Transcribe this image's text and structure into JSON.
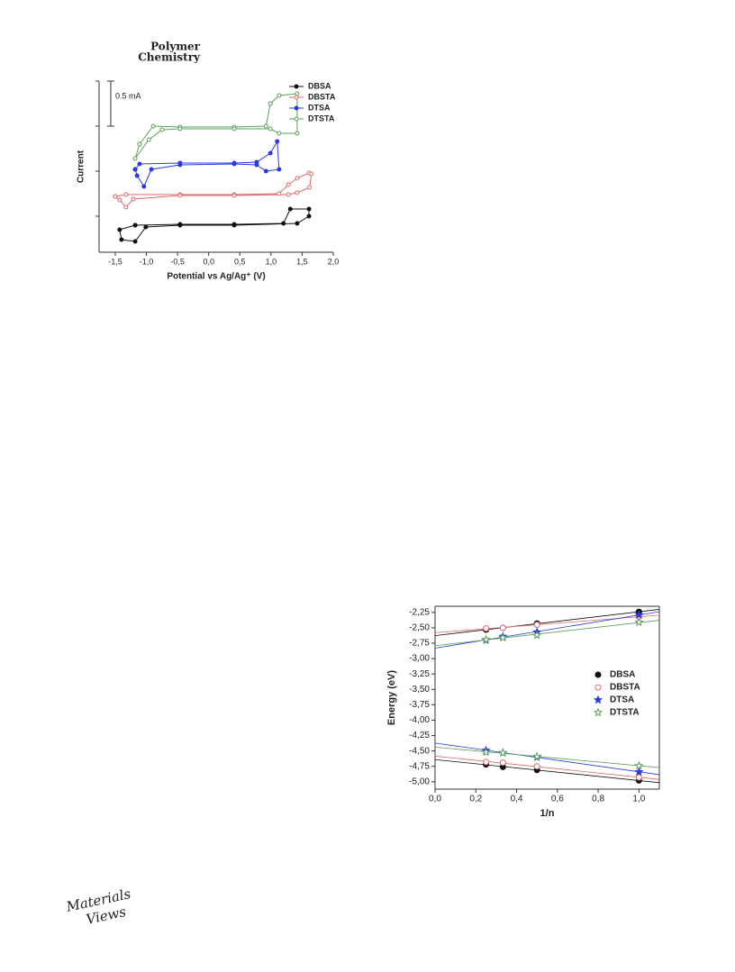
{
  "header": {
    "journal": [
      "Polymer",
      "Chemistry"
    ]
  },
  "footer": {
    "logo": [
      "Materials",
      "Views"
    ]
  },
  "chart_data": [
    {
      "type": "line",
      "xlabel": "Potential vs Ag/Ag⁺ (V)",
      "ylabel": "Current",
      "xlim": [
        -1.76,
        2.0
      ],
      "ylim": [
        -0.4,
        1.5
      ],
      "xticks": [
        {
          "value": -1.5,
          "label": "-1,5"
        },
        {
          "value": -1.0,
          "label": "-1,0"
        },
        {
          "value": -0.5,
          "label": "-0,5"
        },
        {
          "value": 0.0,
          "label": "0,0"
        },
        {
          "value": 0.5,
          "label": "0,5"
        },
        {
          "value": 1.0,
          "label": "1,0"
        },
        {
          "value": 1.5,
          "label": "1,5"
        },
        {
          "value": 2.0,
          "label": "2,0"
        }
      ],
      "yticks": [
        0,
        0.5,
        1,
        1.5
      ],
      "ytick_labels": false,
      "scale_bar": {
        "value": 0.5,
        "label": "0.5 mA"
      },
      "legend": "top-right",
      "series": [
        {
          "name": "DBSA",
          "color": "#111111",
          "marker": "circle-filled",
          "x": [
            -1.18,
            -0.46,
            0.41,
            1.2,
            1.31,
            1.61,
            1.61,
            1.42,
            0.41,
            -0.46,
            -1.01,
            -1.18,
            -1.4,
            -1.43,
            -1.18
          ],
          "values": [
            -0.1,
            -0.09,
            -0.09,
            -0.08,
            0.08,
            0.08,
            0.0,
            -0.08,
            -0.1,
            -0.1,
            -0.12,
            -0.28,
            -0.26,
            -0.15,
            -0.1
          ]
        },
        {
          "name": "DBSTA",
          "color": "#e06a6a",
          "marker": "circle-open",
          "x": [
            -1.5,
            -1.33,
            -0.46,
            0.41,
            1.13,
            1.28,
            1.42,
            1.61,
            1.65,
            1.62,
            1.42,
            1.28,
            0.41,
            -0.46,
            -1.21,
            -1.33,
            -1.43,
            -1.5
          ],
          "values": [
            0.22,
            0.24,
            0.24,
            0.24,
            0.25,
            0.35,
            0.42,
            0.48,
            0.47,
            0.32,
            0.26,
            0.24,
            0.23,
            0.23,
            0.19,
            0.1,
            0.18,
            0.22
          ]
        },
        {
          "name": "DTSA",
          "color": "#2a3adf",
          "marker": "circle-filled",
          "x": [
            -1.18,
            -1.11,
            -0.46,
            0.41,
            0.77,
            0.99,
            1.1,
            1.13,
            0.92,
            0.77,
            0.41,
            -0.46,
            -0.92,
            -1.04,
            -1.15,
            -1.18
          ],
          "values": [
            0.52,
            0.58,
            0.59,
            0.59,
            0.6,
            0.7,
            0.83,
            0.52,
            0.5,
            0.57,
            0.58,
            0.57,
            0.52,
            0.33,
            0.45,
            0.52
          ]
        },
        {
          "name": "DTSTA",
          "color": "#5aa05a",
          "marker": "circle-open",
          "x": [
            -1.11,
            -0.89,
            -0.46,
            0.41,
            0.92,
            0.99,
            1.13,
            1.42,
            1.42,
            1.13,
            0.99,
            0.41,
            -0.46,
            -0.75,
            -0.96,
            -1.18,
            -1.11
          ],
          "values": [
            0.8,
            1.0,
            0.99,
            0.99,
            1.0,
            1.25,
            1.34,
            1.36,
            0.92,
            0.92,
            0.97,
            0.97,
            0.97,
            0.96,
            0.85,
            0.64,
            0.8
          ]
        }
      ]
    },
    {
      "type": "scatter",
      "xlabel": "1/n",
      "ylabel": "Energy (eV)",
      "xlim": [
        0,
        1.1
      ],
      "ylim": [
        -5.12,
        -2.15
      ],
      "xticks": [
        {
          "value": 0.0,
          "label": "0,0"
        },
        {
          "value": 0.2,
          "label": "0,2"
        },
        {
          "value": 0.4,
          "label": "0,4"
        },
        {
          "value": 0.6,
          "label": "0,6"
        },
        {
          "value": 0.8,
          "label": "0,8"
        },
        {
          "value": 1.0,
          "label": "1,0"
        }
      ],
      "yticks": [
        {
          "value": -2.25,
          "label": "-2,25"
        },
        {
          "value": -2.5,
          "label": "-2,50"
        },
        {
          "value": -2.75,
          "label": "-2,75"
        },
        {
          "value": -3.0,
          "label": "-3,00"
        },
        {
          "value": -3.25,
          "label": "-3,25"
        },
        {
          "value": -3.5,
          "label": "-3,50"
        },
        {
          "value": -3.75,
          "label": "-3,75"
        },
        {
          "value": -4.0,
          "label": "-4,00"
        },
        {
          "value": -4.25,
          "label": "-4,25"
        },
        {
          "value": -4.5,
          "label": "-4,50"
        },
        {
          "value": -4.75,
          "label": "-4,75"
        },
        {
          "value": -5.0,
          "label": "-5,00"
        }
      ],
      "ytick_labels": true,
      "fit": true,
      "frame": true,
      "legend": "center-right",
      "series": [
        {
          "name": "DBSA",
          "color": "#111111",
          "marker": "circle-filled",
          "x": [
            0.25,
            0.333,
            0.5,
            1.0
          ],
          "upper": [
            -2.53,
            -2.5,
            -2.43,
            -2.24
          ],
          "lower": [
            -4.72,
            -4.76,
            -4.81,
            -4.98
          ]
        },
        {
          "name": "DBSTA",
          "color": "#e06a6a",
          "marker": "circle-open",
          "x": [
            0.25,
            0.333,
            0.5,
            1.0
          ],
          "upper": [
            -2.51,
            -2.5,
            -2.45,
            -2.32
          ],
          "lower": [
            -4.68,
            -4.69,
            -4.75,
            -4.93
          ]
        },
        {
          "name": "DTSA",
          "color": "#2a3adf",
          "marker": "star-filled",
          "x": [
            0.25,
            0.333,
            0.5,
            1.0
          ],
          "upper": [
            -2.7,
            -2.64,
            -2.57,
            -2.29
          ],
          "lower": [
            -4.49,
            -4.53,
            -4.6,
            -4.84
          ]
        },
        {
          "name": "DTSTA",
          "color": "#5aa05a",
          "marker": "star-open",
          "x": [
            0.25,
            0.333,
            0.5,
            1.0
          ],
          "upper": [
            -2.69,
            -2.66,
            -2.62,
            -2.41
          ],
          "lower": [
            -4.52,
            -4.53,
            -4.59,
            -4.74
          ]
        }
      ]
    }
  ]
}
